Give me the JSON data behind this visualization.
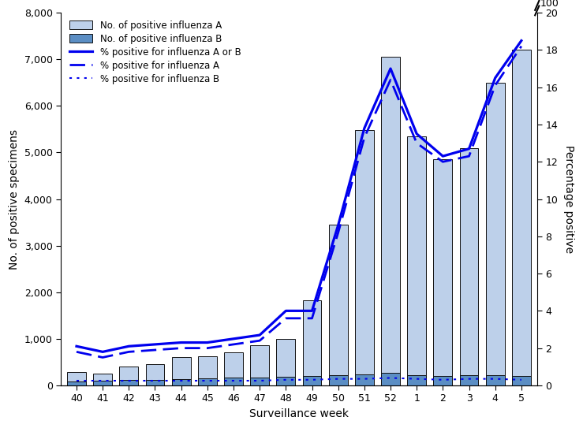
{
  "weeks": [
    "40",
    "41",
    "42",
    "43",
    "44",
    "45",
    "46",
    "47",
    "48",
    "49",
    "50",
    "51",
    "52",
    "1",
    "2",
    "3",
    "4",
    "5"
  ],
  "flu_A": [
    280,
    260,
    400,
    460,
    610,
    630,
    710,
    860,
    1000,
    1820,
    3450,
    5480,
    7050,
    5350,
    4850,
    5100,
    6500,
    7200
  ],
  "flu_B": [
    90,
    100,
    110,
    120,
    140,
    150,
    160,
    170,
    185,
    195,
    215,
    240,
    265,
    215,
    195,
    215,
    215,
    195
  ],
  "pct_AorB": [
    2.1,
    1.8,
    2.1,
    2.2,
    2.3,
    2.3,
    2.5,
    2.7,
    4.0,
    4.0,
    8.6,
    13.8,
    17.0,
    13.5,
    12.3,
    12.7,
    16.5,
    18.5
  ],
  "pct_A": [
    1.8,
    1.5,
    1.8,
    1.9,
    2.0,
    2.0,
    2.2,
    2.4,
    3.6,
    3.6,
    8.2,
    13.3,
    16.4,
    13.0,
    12.0,
    12.3,
    16.1,
    18.2
  ],
  "pct_B": [
    0.25,
    0.25,
    0.25,
    0.25,
    0.25,
    0.25,
    0.25,
    0.25,
    0.3,
    0.3,
    0.35,
    0.35,
    0.4,
    0.35,
    0.3,
    0.35,
    0.35,
    0.3
  ],
  "bar_color_A": "#bdd0ea",
  "bar_color_B": "#5b8ec4",
  "bar_edgecolor": "#111111",
  "line_color": "#0000ee",
  "ylabel_left": "No. of positive specimens",
  "ylabel_right": "Percentage positive",
  "xlabel": "Surveillance week",
  "ylim_left": [
    0,
    8000
  ],
  "ylim_right": [
    0,
    20
  ],
  "yticks_left": [
    0,
    1000,
    2000,
    3000,
    4000,
    5000,
    6000,
    7000,
    8000
  ],
  "yticks_right": [
    0,
    2,
    4,
    6,
    8,
    10,
    12,
    14,
    16,
    18,
    20
  ],
  "legend_labels": [
    "No. of positive influenza A",
    "No. of positive influenza B",
    "% positive for influenza A or B",
    "% positive for influenza A",
    "% positive for influenza B"
  ]
}
